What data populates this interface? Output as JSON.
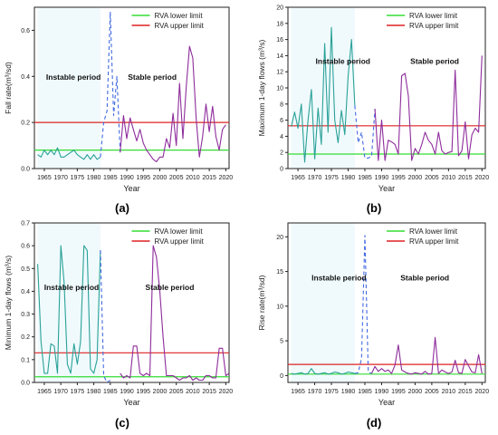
{
  "figure": {
    "panel_labels": [
      "(a)",
      "(b)",
      "(c)",
      "(d)"
    ]
  },
  "chart_data": [
    {
      "type": "line",
      "panel": "(a)",
      "ylabel": "Fall rate(m³/sd)",
      "xlabel": "Year",
      "xlim": [
        1962,
        2021
      ],
      "ylim": [
        0,
        0.7
      ],
      "xticks": [
        1965,
        1970,
        1975,
        1980,
        1985,
        1990,
        1995,
        2000,
        2005,
        2010,
        2015,
        2020
      ],
      "yticks": [
        0.0,
        0.2,
        0.4,
        0.6
      ],
      "ytick_labels": [
        "0.0",
        "0.2",
        "0.4",
        "0.6"
      ],
      "legend": [
        "RVA lower limit",
        "RVA upper limit"
      ],
      "legend_position": "top-right",
      "lower_limit": 0.08,
      "upper_limit": 0.2,
      "annotations": [
        "Instable period",
        "Stable period"
      ],
      "series": [
        {
          "segment": "instable",
          "style": "solid",
          "color": "#2aa198",
          "x": [
            1963,
            1964,
            1965,
            1966,
            1967,
            1968,
            1969,
            1970,
            1971,
            1972,
            1973,
            1974,
            1975,
            1976,
            1977,
            1978,
            1979,
            1980,
            1981,
            1982
          ],
          "y": [
            0.06,
            0.05,
            0.08,
            0.06,
            0.08,
            0.06,
            0.09,
            0.05,
            0.05,
            0.06,
            0.07,
            0.08,
            0.06,
            0.05,
            0.04,
            0.06,
            0.04,
            0.06,
            0.04,
            0.05
          ]
        },
        {
          "segment": "transition",
          "style": "dashed",
          "color": "#4169e1",
          "x": [
            1982,
            1983,
            1984,
            1985,
            1986,
            1987,
            1988
          ],
          "y": [
            0.05,
            0.2,
            0.25,
            0.68,
            0.23,
            0.4,
            0.07
          ]
        },
        {
          "segment": "stable",
          "style": "solid",
          "color": "#8e2c9c",
          "x": [
            1988,
            1989,
            1990,
            1991,
            1992,
            1993,
            1994,
            1995,
            1996,
            1997,
            1998,
            1999,
            2000,
            2001,
            2002,
            2003,
            2004,
            2005,
            2006,
            2007,
            2008,
            2009,
            2010,
            2011,
            2012,
            2013,
            2014,
            2015,
            2016,
            2017,
            2018,
            2019,
            2020
          ],
          "y": [
            0.07,
            0.23,
            0.13,
            0.22,
            0.17,
            0.12,
            0.17,
            0.11,
            0.08,
            0.06,
            0.04,
            0.03,
            0.05,
            0.05,
            0.13,
            0.09,
            0.24,
            0.1,
            0.37,
            0.13,
            0.35,
            0.53,
            0.48,
            0.22,
            0.05,
            0.14,
            0.28,
            0.16,
            0.27,
            0.14,
            0.08,
            0.17,
            0.19
          ]
        }
      ]
    },
    {
      "type": "line",
      "panel": "(b)",
      "ylabel": "Maximum 1-day flows (m³/s)",
      "xlabel": "Year",
      "xlim": [
        1962,
        2021
      ],
      "ylim": [
        0,
        20
      ],
      "xticks": [
        1965,
        1970,
        1975,
        1980,
        1985,
        1990,
        1995,
        2000,
        2005,
        2010,
        2015,
        2020
      ],
      "yticks": [
        0,
        2,
        4,
        6,
        8,
        10,
        12,
        14,
        16,
        18,
        20
      ],
      "ytick_labels": [
        "0",
        "2",
        "4",
        "6",
        "8",
        "10",
        "12",
        "14",
        "16",
        "18",
        "20"
      ],
      "legend": [
        "RVA lower limit",
        "RVA upper limit"
      ],
      "legend_position": "top-right",
      "lower_limit": 1.8,
      "upper_limit": 5.3,
      "annotations": [
        "Instable period",
        "Stable period"
      ],
      "series": [
        {
          "segment": "instable",
          "style": "solid",
          "color": "#2aa198",
          "x": [
            1963,
            1964,
            1965,
            1966,
            1967,
            1968,
            1969,
            1970,
            1971,
            1972,
            1973,
            1974,
            1975,
            1976,
            1977,
            1978,
            1979,
            1980,
            1981,
            1982
          ],
          "y": [
            5.2,
            7.0,
            5.0,
            8.0,
            0.8,
            6.0,
            9.8,
            1.2,
            7.5,
            3.0,
            15.5,
            4.5,
            17.5,
            6.0,
            3.2,
            7.2,
            4.2,
            11.5,
            16.0,
            7.8
          ]
        },
        {
          "segment": "transition",
          "style": "dashed",
          "color": "#4169e1",
          "x": [
            1982,
            1983,
            1984,
            1985,
            1986,
            1987,
            1988
          ],
          "y": [
            7.8,
            3.2,
            4.5,
            1.3,
            1.3,
            1.5,
            7.4
          ]
        },
        {
          "segment": "stable",
          "style": "solid",
          "color": "#8e2c9c",
          "x": [
            1988,
            1989,
            1990,
            1991,
            1992,
            1993,
            1994,
            1995,
            1996,
            1997,
            1998,
            1999,
            2000,
            2001,
            2002,
            2003,
            2004,
            2005,
            2006,
            2007,
            2008,
            2009,
            2010,
            2011,
            2012,
            2013,
            2014,
            2015,
            2016,
            2017,
            2018,
            2019,
            2020
          ],
          "y": [
            7.4,
            1.0,
            6.0,
            1.0,
            3.5,
            3.3,
            3.0,
            1.8,
            11.5,
            11.8,
            9.0,
            1.0,
            2.5,
            1.8,
            3.0,
            4.5,
            3.5,
            3.0,
            1.8,
            4.5,
            2.2,
            1.8,
            2.0,
            2.1,
            12.2,
            1.6,
            2.2,
            5.8,
            1.2,
            4.2,
            5.0,
            4.5,
            14.0
          ]
        }
      ]
    },
    {
      "type": "line",
      "panel": "(c)",
      "ylabel": "Minimum 1-day flows (m³/s)",
      "xlabel": "Year",
      "xlim": [
        1962,
        2021
      ],
      "ylim": [
        0,
        0.7
      ],
      "xticks": [
        1965,
        1970,
        1975,
        1980,
        1985,
        1990,
        1995,
        2000,
        2005,
        2010,
        2015,
        2020
      ],
      "yticks": [
        0.0,
        0.1,
        0.2,
        0.3,
        0.4,
        0.5,
        0.6,
        0.7
      ],
      "ytick_labels": [
        "0.0",
        "0.1",
        "0.2",
        "0.3",
        "0.4",
        "0.5",
        "0.6",
        "0.7"
      ],
      "legend": [
        "RVA lower limit",
        "RVA upper limit"
      ],
      "legend_position": "top-right",
      "lower_limit": 0.025,
      "upper_limit": 0.13,
      "annotations": [
        "Instable period",
        "Stable period"
      ],
      "series": [
        {
          "segment": "instable",
          "style": "solid",
          "color": "#2aa198",
          "x": [
            1963,
            1964,
            1965,
            1966,
            1967,
            1968,
            1969,
            1970,
            1971,
            1972,
            1973,
            1974,
            1975,
            1976,
            1977,
            1978,
            1979,
            1980,
            1981,
            1982
          ],
          "y": [
            0.52,
            0.18,
            0.04,
            0.04,
            0.17,
            0.16,
            0.04,
            0.6,
            0.44,
            0.08,
            0.04,
            0.17,
            0.08,
            0.18,
            0.6,
            0.58,
            0.06,
            0.04,
            0.1,
            0.58
          ]
        },
        {
          "segment": "transition",
          "style": "dashed",
          "color": "#4169e1",
          "x": [
            1982,
            1983,
            1984,
            1985
          ],
          "y": [
            0.58,
            0.03,
            0.0,
            0.01
          ]
        },
        {
          "segment": "stable",
          "style": "solid",
          "color": "#8e2c9c",
          "x": [
            1988,
            1989,
            1990,
            1991,
            1992,
            1993,
            1994,
            1995,
            1996,
            1997,
            1998,
            1999,
            2000,
            2001,
            2002,
            2003,
            2004,
            2005,
            2006,
            2007,
            2008,
            2009,
            2010,
            2011,
            2012,
            2013,
            2014,
            2015,
            2016,
            2017,
            2018,
            2019,
            2020,
            2021
          ],
          "y": [
            0.04,
            0.02,
            0.03,
            0.02,
            0.16,
            0.16,
            0.04,
            0.03,
            0.04,
            0.03,
            0.6,
            0.55,
            0.4,
            0.2,
            0.03,
            0.03,
            0.03,
            0.02,
            0.01,
            0.02,
            0.02,
            0.03,
            0.01,
            0.02,
            0.01,
            0.01,
            0.03,
            0.03,
            0.02,
            0.02,
            0.15,
            0.15,
            0.03,
            0.04
          ]
        }
      ]
    },
    {
      "type": "line",
      "panel": "(d)",
      "ylabel": "Rise rate(m³/sd)",
      "xlabel": "Year",
      "xlim": [
        1962,
        2021
      ],
      "ylim": [
        -1,
        22
      ],
      "xticks": [
        1965,
        1970,
        1975,
        1980,
        1985,
        1990,
        1995,
        2000,
        2005,
        2010,
        2015,
        2020
      ],
      "yticks": [
        0,
        5,
        10,
        15,
        20
      ],
      "ytick_labels": [
        "0",
        "5",
        "10",
        "15",
        "20"
      ],
      "legend": [
        "RVA lower limit",
        "RVA upper limit"
      ],
      "legend_position": "top-right",
      "lower_limit": 0.2,
      "upper_limit": 1.6,
      "annotations": [
        "Instable period",
        "Stable period"
      ],
      "series": [
        {
          "segment": "instable",
          "style": "solid",
          "color": "#2aa198",
          "x": [
            1963,
            1964,
            1965,
            1966,
            1967,
            1968,
            1969,
            1970,
            1971,
            1972,
            1973,
            1974,
            1975,
            1976,
            1977,
            1978,
            1979,
            1980,
            1981,
            1982
          ],
          "y": [
            0.3,
            0.2,
            0.3,
            0.4,
            0.2,
            0.3,
            1.0,
            0.3,
            0.2,
            0.3,
            0.4,
            0.2,
            0.3,
            0.5,
            0.4,
            0.2,
            0.3,
            0.5,
            0.4,
            0.3
          ]
        },
        {
          "segment": "transition",
          "style": "dashed",
          "color": "#4169e1",
          "x": [
            1982,
            1983,
            1984,
            1985,
            1986,
            1987
          ],
          "y": [
            0.3,
            0.4,
            2.5,
            20.2,
            0.5,
            0.3
          ]
        },
        {
          "segment": "stable",
          "style": "solid",
          "color": "#8e2c9c",
          "x": [
            1987,
            1988,
            1989,
            1990,
            1991,
            1992,
            1993,
            1994,
            1995,
            1996,
            1997,
            1998,
            1999,
            2000,
            2001,
            2002,
            2003,
            2004,
            2005,
            2006,
            2007,
            2008,
            2009,
            2010,
            2011,
            2012,
            2013,
            2014,
            2015,
            2016,
            2017,
            2018,
            2019,
            2020
          ],
          "y": [
            0.3,
            1.3,
            0.6,
            1.0,
            0.6,
            0.8,
            0.3,
            1.5,
            4.4,
            0.8,
            0.5,
            0.3,
            0.2,
            0.4,
            0.3,
            0.2,
            0.6,
            0.2,
            0.3,
            5.5,
            0.3,
            0.8,
            0.5,
            0.3,
            0.5,
            2.2,
            0.4,
            0.3,
            2.3,
            1.4,
            0.5,
            0.4,
            3.0,
            0.3
          ]
        }
      ]
    }
  ]
}
